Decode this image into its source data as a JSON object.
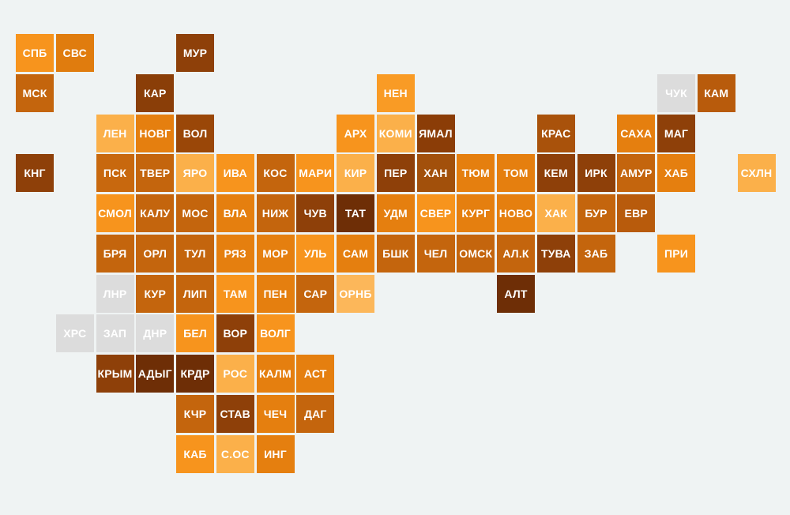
{
  "map": {
    "rows": [
      [
        {
          "label": "СПБ",
          "color": "#f7941d"
        },
        {
          "label": "СВС",
          "color": "#e07c0e"
        },
        null,
        null,
        {
          "label": "МУР",
          "color": "#8e4009"
        }
      ],
      [
        {
          "label": "МСК",
          "color": "#c4650d"
        },
        null,
        null,
        {
          "label": "КАР",
          "color": "#8a3e08"
        },
        null,
        null,
        null,
        null,
        null,
        {
          "label": "НЕН",
          "color": "#f99b25"
        },
        null,
        null,
        null,
        null,
        null,
        null,
        {
          "label": "ЧУК",
          "color": "#dcdcdc"
        },
        {
          "label": "КАМ",
          "color": "#b85b0c"
        }
      ],
      [
        null,
        null,
        {
          "label": "ЛЕН",
          "color": "#fbb04a"
        },
        {
          "label": "НОВГ",
          "color": "#e57f0f"
        },
        {
          "label": "ВОЛ",
          "color": "#9a4708"
        },
        null,
        null,
        null,
        {
          "label": "АРХ",
          "color": "#f7941d"
        },
        {
          "label": "КОМИ",
          "color": "#fbb04a"
        },
        {
          "label": "ЯМАЛ",
          "color": "#8b3d07"
        },
        null,
        null,
        {
          "label": "КРАС",
          "color": "#a9520b"
        },
        null,
        {
          "label": "САХА",
          "color": "#e57f0f"
        },
        {
          "label": "МАГ",
          "color": "#8e4009"
        }
      ],
      [
        {
          "label": "КНГ",
          "color": "#8e4009"
        },
        null,
        {
          "label": "ПСК",
          "color": "#c8680e"
        },
        {
          "label": "ТВЕР",
          "color": "#c4650d"
        },
        {
          "label": "ЯРО",
          "color": "#fbb04a"
        },
        {
          "label": "ИВА",
          "color": "#f7941d"
        },
        {
          "label": "КОС",
          "color": "#c4650d"
        },
        {
          "label": "МАРИ",
          "color": "#f7941d"
        },
        {
          "label": "КИР",
          "color": "#fbb04a"
        },
        {
          "label": "ПЕР",
          "color": "#8e4009"
        },
        {
          "label": "ХАН",
          "color": "#a2500b"
        },
        {
          "label": "ТЮМ",
          "color": "#e57f0f"
        },
        {
          "label": "ТОМ",
          "color": "#e57f0f"
        },
        {
          "label": "КЕМ",
          "color": "#8e4009"
        },
        {
          "label": "ИРК",
          "color": "#8e4009"
        },
        {
          "label": "АМУР",
          "color": "#c4650d"
        },
        {
          "label": "ХАБ",
          "color": "#e57f0f"
        },
        null,
        {
          "label": "СХЛН",
          "color": "#fbb04a"
        }
      ],
      [
        null,
        null,
        {
          "label": "СМОЛ",
          "color": "#f7941d"
        },
        {
          "label": "КАЛУ",
          "color": "#c4650d"
        },
        {
          "label": "МОС",
          "color": "#c4650d"
        },
        {
          "label": "ВЛА",
          "color": "#e57f0f"
        },
        {
          "label": "НИЖ",
          "color": "#c4650d"
        },
        {
          "label": "ЧУВ",
          "color": "#8e4009"
        },
        {
          "label": "ТАТ",
          "color": "#6e2e06"
        },
        {
          "label": "УДМ",
          "color": "#e57f0f"
        },
        {
          "label": "СВЕР",
          "color": "#f7941d"
        },
        {
          "label": "КУРГ",
          "color": "#e57f0f"
        },
        {
          "label": "НОВО",
          "color": "#e57f0f"
        },
        {
          "label": "ХАК",
          "color": "#fbb04a"
        },
        {
          "label": "БУР",
          "color": "#c4650d"
        },
        {
          "label": "ЕВР",
          "color": "#b85b0c"
        }
      ],
      [
        null,
        null,
        {
          "label": "БРЯ",
          "color": "#c4650d"
        },
        {
          "label": "ОРЛ",
          "color": "#c4650d"
        },
        {
          "label": "ТУЛ",
          "color": "#c4650d"
        },
        {
          "label": "РЯЗ",
          "color": "#e57f0f"
        },
        {
          "label": "МОР",
          "color": "#e57f0f"
        },
        {
          "label": "УЛЬ",
          "color": "#f7941d"
        },
        {
          "label": "САМ",
          "color": "#e57f0f"
        },
        {
          "label": "БШК",
          "color": "#c4650d"
        },
        {
          "label": "ЧЕЛ",
          "color": "#c4650d"
        },
        {
          "label": "ОМСК",
          "color": "#c4650d"
        },
        {
          "label": "АЛ.К",
          "color": "#c4650d"
        },
        {
          "label": "ТУВА",
          "color": "#8e4009"
        },
        {
          "label": "ЗАБ",
          "color": "#c4650d"
        },
        null,
        {
          "label": "ПРИ",
          "color": "#f7941d"
        }
      ],
      [
        null,
        null,
        {
          "label": "ЛНР",
          "color": "#dcdcdc"
        },
        {
          "label": "КУР",
          "color": "#c4650d"
        },
        {
          "label": "ЛИП",
          "color": "#c4650d"
        },
        {
          "label": "ТАМ",
          "color": "#f7941d"
        },
        {
          "label": "ПЕН",
          "color": "#e57f0f"
        },
        {
          "label": "САР",
          "color": "#c4650d"
        },
        {
          "label": "ОРНБ",
          "color": "#fcb75a"
        },
        null,
        null,
        null,
        {
          "label": "АЛТ",
          "color": "#6e2e06"
        }
      ],
      [
        null,
        {
          "label": "ХРС",
          "color": "#dcdcdc"
        },
        {
          "label": "ЗАП",
          "color": "#dcdcdc"
        },
        {
          "label": "ДНР",
          "color": "#dcdcdc"
        },
        {
          "label": "БЕЛ",
          "color": "#f7941d"
        },
        {
          "label": "ВОР",
          "color": "#8e4009"
        },
        {
          "label": "ВОЛГ",
          "color": "#f7941d"
        }
      ],
      [
        null,
        null,
        {
          "label": "КРЫМ",
          "color": "#8e4009"
        },
        {
          "label": "АДЫГ",
          "color": "#6e2e06"
        },
        {
          "label": "КРДР",
          "color": "#6e2e06"
        },
        {
          "label": "РОС",
          "color": "#fbb04a"
        },
        {
          "label": "КАЛМ",
          "color": "#e57f0f"
        },
        {
          "label": "АСТ",
          "color": "#e57f0f"
        }
      ],
      [
        null,
        null,
        null,
        null,
        {
          "label": "КЧР",
          "color": "#c4650d"
        },
        {
          "label": "СТАВ",
          "color": "#8e4009"
        },
        {
          "label": "ЧЕЧ",
          "color": "#e57f0f"
        },
        {
          "label": "ДАГ",
          "color": "#c4650d"
        }
      ],
      [
        null,
        null,
        null,
        null,
        {
          "label": "КАБ",
          "color": "#f7941d"
        },
        {
          "label": "С.ОС",
          "color": "#fbb04a"
        },
        {
          "label": "ИНГ",
          "color": "#e57f0f"
        }
      ]
    ]
  }
}
